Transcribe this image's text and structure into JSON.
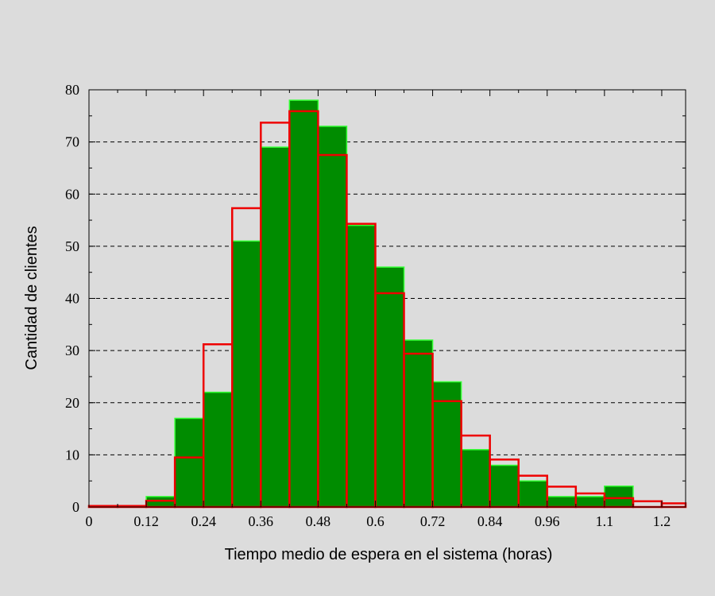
{
  "chart_data": {
    "type": "bar",
    "xlabel": "Tiempo medio de espera en el sistema (horas)",
    "ylabel": "Cantidad de clientes",
    "xlim": [
      0,
      1.25
    ],
    "ylim": [
      0,
      80
    ],
    "grid": "horizontal dashed",
    "x_ticks": [
      {
        "value": 0,
        "label": "0"
      },
      {
        "value": 0.12,
        "label": "0.12"
      },
      {
        "value": 0.24,
        "label": "0.24"
      },
      {
        "value": 0.36,
        "label": "0.36"
      },
      {
        "value": 0.48,
        "label": "0.48"
      },
      {
        "value": 0.6,
        "label": "0.6"
      },
      {
        "value": 0.72,
        "label": "0.72"
      },
      {
        "value": 0.84,
        "label": "0.84"
      },
      {
        "value": 0.96,
        "label": "0.96"
      },
      {
        "value": 1.08,
        "label": "1.1"
      },
      {
        "value": 1.2,
        "label": "1.2"
      }
    ],
    "y_ticks": [
      0,
      10,
      20,
      30,
      40,
      50,
      60,
      70,
      80
    ],
    "bin_width": 0.06,
    "bin_starts": [
      0,
      0.06,
      0.12,
      0.18,
      0.24,
      0.3,
      0.36,
      0.42,
      0.48,
      0.54,
      0.6,
      0.66,
      0.72,
      0.78,
      0.84,
      0.9,
      0.96,
      1.02,
      1.08,
      1.14,
      1.2
    ],
    "series": [
      {
        "values": [
          0,
          0,
          2,
          17,
          22,
          51,
          69,
          78,
          73,
          54,
          46,
          32,
          24,
          11,
          8,
          5,
          2,
          2,
          4,
          0,
          0
        ],
        "color": "#008c00",
        "edge_color": "#33ff33",
        "style": "filled"
      },
      {
        "values": [
          0.2,
          0.2,
          1.2,
          9.5,
          31.2,
          57.3,
          73.7,
          75.9,
          67.5,
          54.3,
          41,
          29.4,
          20.3,
          13.7,
          9.1,
          6,
          3.9,
          2.6,
          1.7,
          1.1,
          0.7
        ],
        "color": "#ee0000",
        "style": "outline"
      }
    ]
  }
}
